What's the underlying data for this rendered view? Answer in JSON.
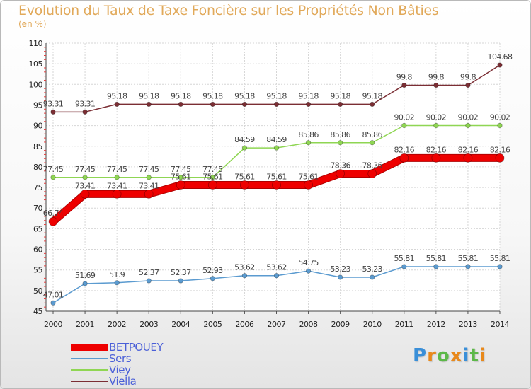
{
  "header": {
    "title": "Evolution du Taux de Taxe Foncière sur les Propriétés Non Bâties",
    "unit": "(en %)"
  },
  "chart_data": {
    "type": "line",
    "title": "Evolution du Taux de Taxe Foncière sur les Propriétés Non Bâties",
    "ylabel": "(en %)",
    "xlabel": "",
    "ylim": [
      45,
      110
    ],
    "yticks": [
      45,
      50,
      55,
      60,
      65,
      70,
      75,
      80,
      85,
      90,
      95,
      100,
      105,
      110
    ],
    "x": [
      "2000",
      "2001",
      "2002",
      "2003",
      "2004",
      "2005",
      "2006",
      "2007",
      "2008",
      "2009",
      "2010",
      "2011",
      "2012",
      "2013",
      "2014"
    ],
    "series": [
      {
        "name": "BETPOUEY",
        "color": "#ee0000",
        "values": [
          66.74,
          73.41,
          73.41,
          73.41,
          75.61,
          75.61,
          75.61,
          75.61,
          75.61,
          78.36,
          78.36,
          82.16,
          82.16,
          82.16,
          82.16
        ],
        "labels": [
          "66.74",
          "73.41",
          "73.41",
          "73.41",
          "75.61",
          "75.61",
          "75.61",
          "75.61",
          "75.61",
          "78.36",
          "78.36",
          "82.16",
          "82.16",
          "82.16",
          "82.16"
        ]
      },
      {
        "name": "Sers",
        "color": "#5b9bd0",
        "values": [
          47.01,
          51.69,
          51.9,
          52.37,
          52.37,
          52.93,
          53.62,
          53.62,
          54.75,
          53.23,
          53.23,
          55.81,
          55.81,
          55.81,
          55.81
        ],
        "labels": [
          "47.01",
          "51.69",
          "51.9",
          "52.37",
          "52.37",
          "52.93",
          "53.62",
          "53.62",
          "54.75",
          "53.23",
          "53.23",
          "55.81",
          "55.81",
          "55.81",
          "55.81"
        ]
      },
      {
        "name": "Viey",
        "color": "#8fd653",
        "values": [
          77.45,
          77.45,
          77.45,
          77.45,
          77.45,
          77.45,
          84.59,
          84.59,
          85.86,
          85.86,
          85.86,
          90.02,
          90.02,
          90.02,
          90.02
        ],
        "labels": [
          "77.45",
          "77.45",
          "77.45",
          "77.45",
          "77.45",
          "77.45",
          "84.59",
          "84.59",
          "85.86",
          "85.86",
          "85.86",
          "90.02",
          "90.02",
          "90.02",
          "90.02"
        ]
      },
      {
        "name": "Viella",
        "color": "#7b2e34",
        "values": [
          93.31,
          93.31,
          95.18,
          95.18,
          95.18,
          95.18,
          95.18,
          95.18,
          95.18,
          95.18,
          95.18,
          99.8,
          99.8,
          99.8,
          104.68
        ],
        "labels": [
          "93.31",
          "93.31",
          "95.18",
          "95.18",
          "95.18",
          "95.18",
          "95.18",
          "95.18",
          "95.18",
          "95.18",
          "95.18",
          "99.8",
          "99.8",
          "99.8",
          "104.68"
        ]
      }
    ]
  },
  "legend": [
    {
      "label": "BETPOUEY",
      "color": "#ee0000"
    },
    {
      "label": "Sers",
      "color": "#5b9bd0"
    },
    {
      "label": "Viey",
      "color": "#8fd653"
    },
    {
      "label": "Viella",
      "color": "#7b2e34"
    }
  ],
  "logo": {
    "letters": [
      "P",
      "r",
      "o",
      "x",
      "i",
      "t",
      "i"
    ],
    "colors": [
      "#3a8fd8",
      "#e8891c",
      "#5cb848",
      "#e8891c",
      "#3a8fd8",
      "#5cb848",
      "#e8891c"
    ]
  }
}
